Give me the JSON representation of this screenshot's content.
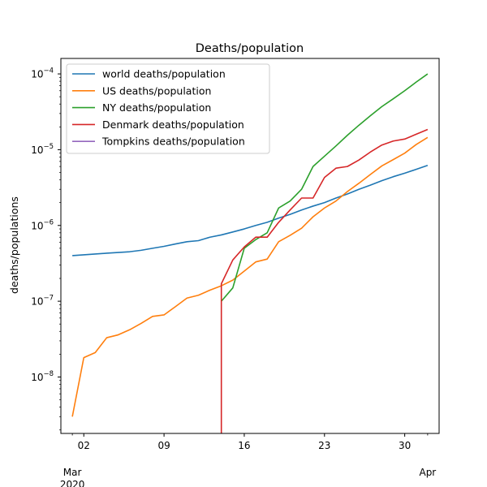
{
  "chart_data": {
    "type": "line",
    "title": "Deaths/population",
    "xlabel": "",
    "ylabel": "deaths/populations",
    "yscale": "log",
    "ylim": [
      1.8e-09,
      0.00016
    ],
    "xlim": [
      "2020-02-29",
      "2020-04-02"
    ],
    "grid": false,
    "legend_position": "top-left",
    "x_ticks": [
      {
        "date": "2020-03-02",
        "label": "02"
      },
      {
        "date": "2020-03-09",
        "label": "09"
      },
      {
        "date": "2020-03-16",
        "label": "16"
      },
      {
        "date": "2020-03-23",
        "label": "23"
      },
      {
        "date": "2020-03-30",
        "label": "30"
      }
    ],
    "x_minor_ticks": [
      "2020-03-01",
      "2020-04-01"
    ],
    "x_month_labels": [
      {
        "date": "2020-03-01",
        "text": "Mar",
        "year": "2020"
      },
      {
        "date": "2020-04-01",
        "text": "Apr",
        "year": ""
      }
    ],
    "y_ticks": [
      {
        "value": 1e-08,
        "base": "10",
        "exp": "−8"
      },
      {
        "value": 1e-07,
        "base": "10",
        "exp": "−7"
      },
      {
        "value": 1e-06,
        "base": "10",
        "exp": "−6"
      },
      {
        "value": 1e-05,
        "base": "10",
        "exp": "−5"
      },
      {
        "value": 0.0001,
        "base": "10",
        "exp": "−4"
      }
    ],
    "series": [
      {
        "name": "world deaths/population",
        "color": "#1f77b4",
        "x": [
          "2020-03-01",
          "2020-03-02",
          "2020-03-03",
          "2020-03-04",
          "2020-03-05",
          "2020-03-06",
          "2020-03-07",
          "2020-03-08",
          "2020-03-09",
          "2020-03-10",
          "2020-03-11",
          "2020-03-12",
          "2020-03-13",
          "2020-03-14",
          "2020-03-15",
          "2020-03-16",
          "2020-03-17",
          "2020-03-18",
          "2020-03-19",
          "2020-03-20",
          "2020-03-21",
          "2020-03-22",
          "2020-03-23",
          "2020-03-24",
          "2020-03-25",
          "2020-03-26",
          "2020-03-27",
          "2020-03-28",
          "2020-03-29",
          "2020-03-30",
          "2020-03-31",
          "2020-04-01"
        ],
        "values": [
          4e-07,
          4.1e-07,
          4.2e-07,
          4.3e-07,
          4.4e-07,
          4.5e-07,
          4.7e-07,
          5e-07,
          5.3e-07,
          5.7e-07,
          6.1e-07,
          6.3e-07,
          7e-07,
          7.5e-07,
          8.2e-07,
          9e-07,
          1e-06,
          1.1e-06,
          1.25e-06,
          1.4e-06,
          1.6e-06,
          1.8e-06,
          2e-06,
          2.3e-06,
          2.6e-06,
          3e-06,
          3.4e-06,
          3.9e-06,
          4.4e-06,
          4.9e-06,
          5.5e-06,
          6.2e-06
        ]
      },
      {
        "name": "US deaths/population",
        "color": "#ff7f0e",
        "x": [
          "2020-03-01",
          "2020-03-02",
          "2020-03-03",
          "2020-03-04",
          "2020-03-05",
          "2020-03-06",
          "2020-03-07",
          "2020-03-08",
          "2020-03-09",
          "2020-03-10",
          "2020-03-11",
          "2020-03-12",
          "2020-03-13",
          "2020-03-14",
          "2020-03-15",
          "2020-03-16",
          "2020-03-17",
          "2020-03-18",
          "2020-03-19",
          "2020-03-20",
          "2020-03-21",
          "2020-03-22",
          "2020-03-23",
          "2020-03-24",
          "2020-03-25",
          "2020-03-26",
          "2020-03-27",
          "2020-03-28",
          "2020-03-29",
          "2020-03-30",
          "2020-03-31",
          "2020-04-01"
        ],
        "values": [
          3e-09,
          1.8e-08,
          2.1e-08,
          3.3e-08,
          3.6e-08,
          4.2e-08,
          5.1e-08,
          6.3e-08,
          6.6e-08,
          8.5e-08,
          1.1e-07,
          1.2e-07,
          1.4e-07,
          1.6e-07,
          1.9e-07,
          2.5e-07,
          3.3e-07,
          3.6e-07,
          6.1e-07,
          7.4e-07,
          9.2e-07,
          1.3e-06,
          1.7e-06,
          2.1e-06,
          2.8e-06,
          3.6e-06,
          4.7e-06,
          6.1e-06,
          7.4e-06,
          9e-06,
          1.17e-05,
          1.45e-05
        ]
      },
      {
        "name": "NY deaths/population",
        "color": "#2ca02c",
        "x": [
          "2020-03-14",
          "2020-03-15",
          "2020-03-16",
          "2020-03-17",
          "2020-03-18",
          "2020-03-19",
          "2020-03-20",
          "2020-03-21",
          "2020-03-22",
          "2020-03-23",
          "2020-03-24",
          "2020-03-25",
          "2020-03-26",
          "2020-03-27",
          "2020-03-28",
          "2020-03-29",
          "2020-03-30",
          "2020-03-31",
          "2020-04-01"
        ],
        "values": [
          1e-07,
          1.5e-07,
          5e-07,
          6.5e-07,
          8e-07,
          1.7e-06,
          2.1e-06,
          3e-06,
          6e-06,
          8.2e-06,
          1.12e-05,
          1.55e-05,
          2.1e-05,
          2.8e-05,
          3.7e-05,
          4.7e-05,
          6e-05,
          7.8e-05,
          0.0001
        ]
      },
      {
        "name": "Denmark deaths/population",
        "color": "#d62728",
        "x": [
          "2020-03-14",
          "2020-03-14",
          "2020-03-15",
          "2020-03-16",
          "2020-03-17",
          "2020-03-18",
          "2020-03-19",
          "2020-03-20",
          "2020-03-21",
          "2020-03-22",
          "2020-03-23",
          "2020-03-24",
          "2020-03-25",
          "2020-03-26",
          "2020-03-27",
          "2020-03-28",
          "2020-03-29",
          "2020-03-30",
          "2020-03-31",
          "2020-04-01"
        ],
        "values": [
          1.8e-09,
          1.7e-07,
          3.5e-07,
          5.2e-07,
          7e-07,
          7e-07,
          1.1e-06,
          1.6e-06,
          2.3e-06,
          2.3e-06,
          4.3e-06,
          5.7e-06,
          6e-06,
          7.3e-06,
          9.3e-06,
          1.15e-05,
          1.3e-05,
          1.38e-05,
          1.6e-05,
          1.85e-05
        ]
      },
      {
        "name": "Tompkins deaths/population",
        "color": "#9467bd",
        "x": [],
        "values": []
      }
    ]
  }
}
